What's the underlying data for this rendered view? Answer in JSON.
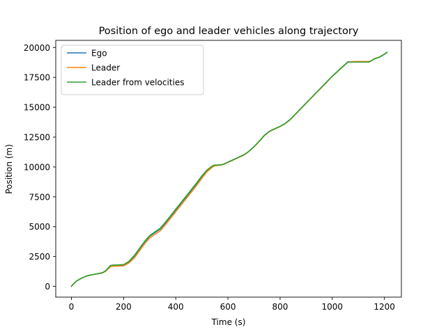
{
  "chart_data": {
    "type": "line",
    "title": "Position of ego and leader vehicles along trajectory",
    "xlabel": "Time (s)",
    "ylabel": "Position (m)",
    "xlim": [
      -60,
      1265
    ],
    "ylim": [
      -900,
      20600
    ],
    "grid": false,
    "legend_position": "top-left",
    "xticks": [
      0,
      200,
      400,
      600,
      800,
      1000,
      1200
    ],
    "xtick_labels": [
      "0",
      "200",
      "400",
      "600",
      "800",
      "1000",
      "1200"
    ],
    "yticks": [
      0,
      2500,
      5000,
      7500,
      10000,
      12500,
      15000,
      17500,
      20000
    ],
    "ytick_labels": [
      "0",
      "2500",
      "5000",
      "7500",
      "10000",
      "12500",
      "15000",
      "17500",
      "20000"
    ],
    "series": [
      {
        "name": "Ego",
        "color": "#1f77b4",
        "x": [
          0,
          10,
          20,
          40,
          60,
          80,
          100,
          120,
          130,
          140,
          150,
          160,
          180,
          200,
          220,
          240,
          260,
          280,
          300,
          320,
          340,
          360,
          380,
          400,
          420,
          440,
          460,
          480,
          500,
          520,
          540,
          550,
          560,
          580,
          600,
          620,
          640,
          660,
          680,
          700,
          720,
          740,
          760,
          780,
          800,
          820,
          840,
          860,
          880,
          900,
          920,
          940,
          960,
          980,
          1000,
          1020,
          1040,
          1060,
          1080,
          1100,
          1120,
          1140,
          1150,
          1160,
          1180,
          1200,
          1210
        ],
        "y": [
          0,
          250,
          450,
          700,
          880,
          980,
          1050,
          1150,
          1300,
          1500,
          1750,
          1780,
          1790,
          1800,
          2050,
          2500,
          3100,
          3700,
          4200,
          4500,
          4800,
          5300,
          5850,
          6400,
          6950,
          7500,
          8050,
          8600,
          9200,
          9700,
          10050,
          10150,
          10150,
          10200,
          10400,
          10600,
          10800,
          11000,
          11300,
          11700,
          12150,
          12650,
          13000,
          13200,
          13400,
          13650,
          14000,
          14450,
          14900,
          15350,
          15800,
          16250,
          16700,
          17150,
          17600,
          18000,
          18400,
          18800,
          18800,
          18800,
          18800,
          18800,
          18900,
          19050,
          19200,
          19450,
          19600
        ]
      },
      {
        "name": "Leader",
        "color": "#ff7f0e",
        "x": [
          0,
          10,
          20,
          40,
          60,
          80,
          100,
          120,
          130,
          140,
          150,
          160,
          180,
          200,
          220,
          240,
          260,
          280,
          300,
          320,
          340,
          360,
          380,
          400,
          420,
          440,
          460,
          480,
          500,
          520,
          540,
          550,
          560,
          580,
          600,
          620,
          640,
          660,
          680,
          700,
          720,
          740,
          760,
          780,
          800,
          820,
          840,
          860,
          880,
          900,
          920,
          940,
          960,
          980,
          1000,
          1020,
          1040,
          1060,
          1080,
          1100,
          1120,
          1140,
          1150,
          1160,
          1180,
          1200,
          1210
        ],
        "y": [
          0,
          250,
          450,
          700,
          880,
          980,
          1050,
          1130,
          1250,
          1450,
          1650,
          1680,
          1700,
          1720,
          1950,
          2350,
          2950,
          3550,
          4050,
          4350,
          4650,
          5150,
          5700,
          6250,
          6800,
          7350,
          7900,
          8450,
          9050,
          9600,
          9980,
          10100,
          10120,
          10180,
          10380,
          10580,
          10780,
          10980,
          11280,
          11680,
          12130,
          12630,
          12980,
          13180,
          13380,
          13630,
          13980,
          14430,
          14880,
          15330,
          15780,
          16230,
          16680,
          17130,
          17580,
          17980,
          18380,
          18780,
          18820,
          18830,
          18830,
          18830,
          18900,
          19050,
          19200,
          19450,
          19600
        ]
      },
      {
        "name": "Leader from velocities",
        "color": "#2ca02c",
        "x": [
          0,
          10,
          20,
          40,
          60,
          80,
          100,
          120,
          130,
          140,
          150,
          160,
          180,
          200,
          220,
          240,
          260,
          280,
          300,
          320,
          340,
          360,
          380,
          400,
          420,
          440,
          460,
          480,
          500,
          520,
          540,
          550,
          560,
          580,
          600,
          620,
          640,
          660,
          680,
          700,
          720,
          740,
          760,
          780,
          800,
          820,
          840,
          860,
          880,
          900,
          920,
          940,
          960,
          980,
          1000,
          1020,
          1040,
          1060,
          1080,
          1100,
          1120,
          1140,
          1150,
          1160,
          1180,
          1200,
          1210
        ],
        "y": [
          0,
          250,
          450,
          700,
          880,
          980,
          1050,
          1150,
          1300,
          1500,
          1750,
          1780,
          1800,
          1820,
          2080,
          2550,
          3150,
          3750,
          4250,
          4560,
          4860,
          5360,
          5910,
          6460,
          7010,
          7560,
          8110,
          8660,
          9250,
          9750,
          10080,
          10160,
          10160,
          10200,
          10400,
          10600,
          10800,
          11000,
          11300,
          11700,
          12150,
          12650,
          13000,
          13200,
          13400,
          13650,
          14000,
          14450,
          14900,
          15350,
          15800,
          16250,
          16700,
          17150,
          17600,
          18000,
          18400,
          18780,
          18780,
          18780,
          18780,
          18780,
          18880,
          19030,
          19180,
          19430,
          19600
        ]
      }
    ]
  }
}
